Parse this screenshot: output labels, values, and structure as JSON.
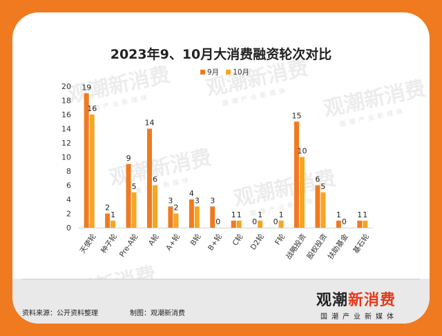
{
  "title": "2023年9、10月大消费融资轮次对比",
  "legend": {
    "s1": "9月",
    "s2": "10月"
  },
  "colors": {
    "s1": "#f07a20",
    "s2": "#f5a623",
    "background": "#f07a20"
  },
  "footer": {
    "source": "资料来源：公开资料整理",
    "maker": "制图：观潮新消费",
    "logo_left": "观潮",
    "logo_right": "新消费",
    "logo_sub": "国潮产业新媒体"
  },
  "watermark": {
    "brand": "观潮新消费",
    "sub": "国潮产业新媒体"
  },
  "chart_data": {
    "type": "bar",
    "title": "2023年9、10月大消费融资轮次对比",
    "categories": [
      "天使轮",
      "种子轮",
      "Pre-A轮",
      "A轮",
      "A+轮",
      "B轮",
      "B+轮",
      "C轮",
      "D2轮",
      "F轮",
      "战略投资",
      "股权投资",
      "扶助基金",
      "基石轮"
    ],
    "series": [
      {
        "name": "9月",
        "values": [
          19,
          2,
          9,
          14,
          3,
          4,
          3,
          1,
          0,
          0,
          15,
          6,
          1,
          1
        ]
      },
      {
        "name": "10月",
        "values": [
          16,
          1,
          5,
          6,
          2,
          3,
          0,
          1,
          1,
          1,
          10,
          5,
          0,
          1
        ]
      }
    ],
    "ylim": [
      0,
      20
    ],
    "yticks": [
      0,
      2,
      4,
      6,
      8,
      10,
      12,
      14,
      16,
      18,
      20
    ],
    "grid": false,
    "legend_position": "top"
  }
}
